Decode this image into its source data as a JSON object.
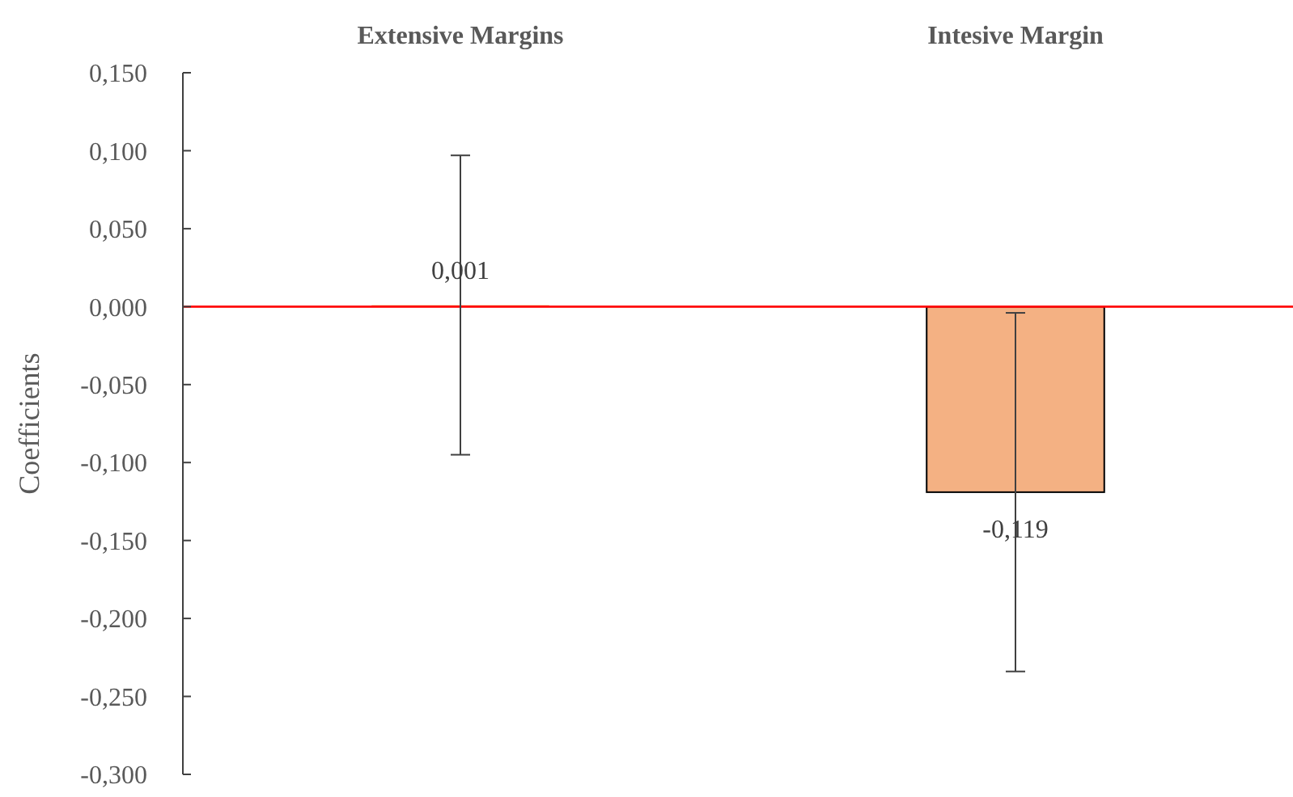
{
  "chart_data": {
    "type": "bar",
    "ylabel": "Coefficients",
    "categories": [
      "Extensive Margins",
      "Intesive Margin"
    ],
    "values": [
      0.001,
      -0.119
    ],
    "errors": [
      0.096,
      0.115
    ],
    "value_labels": [
      "0,001",
      "-0,119"
    ],
    "color": "#f4b183",
    "ylim": [
      -0.3,
      0.15
    ],
    "yticks": [
      {
        "value": 0.15,
        "label": "0,150"
      },
      {
        "value": 0.1,
        "label": "0,100"
      },
      {
        "value": 0.05,
        "label": "0,050"
      },
      {
        "value": 0,
        "label": "0,000"
      },
      {
        "value": -0.05,
        "label": "-0,050"
      },
      {
        "value": -0.1,
        "label": "-0,100"
      },
      {
        "value": -0.15,
        "label": "-0,150"
      },
      {
        "value": -0.2,
        "label": "-0,200"
      },
      {
        "value": -0.25,
        "label": "-0,250"
      },
      {
        "value": -0.3,
        "label": "-0,300"
      }
    ],
    "ref_lines": [
      {
        "axis": "y",
        "value": 0,
        "color": "#ff0000"
      }
    ],
    "grid": false
  }
}
